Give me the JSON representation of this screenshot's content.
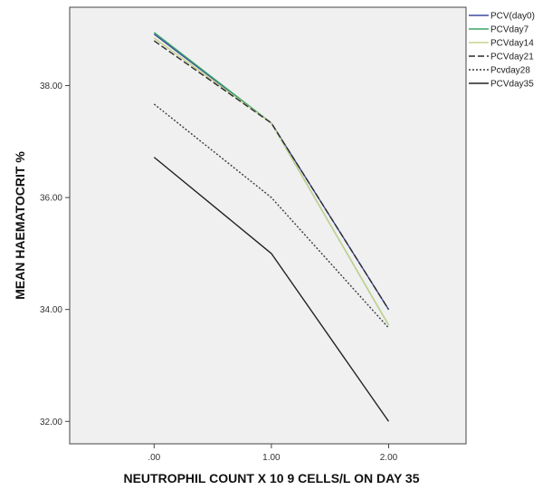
{
  "chart_data": {
    "type": "line",
    "title": "",
    "xlabel": "NEUTROPHIL COUNT X 10 9 CELLS/L ON DAY 35",
    "ylabel": "MEAN HAEMATOCRIT %",
    "categories": [
      ".00",
      "1.00",
      "2.00"
    ],
    "x": [
      0,
      1,
      2
    ],
    "xlim": [
      -0.72,
      2.66
    ],
    "ylim": [
      31.6,
      39.4
    ],
    "yticks": [
      32,
      34,
      36,
      38
    ],
    "ytick_labels": [
      "32.00",
      "34.00",
      "36.00",
      "38.00"
    ],
    "grid": false,
    "legend_position": "right",
    "series": [
      {
        "name": "PCV(day0)",
        "values": [
          38.92,
          37.33,
          34.0
        ],
        "color": "#3b4a9c",
        "dash": ""
      },
      {
        "name": "PCVday7",
        "values": [
          38.95,
          37.33,
          33.72
        ],
        "color": "#3aa469",
        "dash": ""
      },
      {
        "name": "PCVday14",
        "values": [
          38.85,
          37.33,
          33.72
        ],
        "color": "#c6d38e",
        "dash": ""
      },
      {
        "name": "PCVday21",
        "values": [
          38.8,
          37.33,
          34.0
        ],
        "color": "#2b2b2b",
        "dash": "7,3"
      },
      {
        "name": "Pcvday28",
        "values": [
          37.67,
          36.0,
          33.67
        ],
        "color": "#3a3a3a",
        "dash": "2,2"
      },
      {
        "name": "PCVday35",
        "values": [
          36.72,
          35.0,
          32.0
        ],
        "color": "#222222",
        "dash": ""
      }
    ]
  }
}
